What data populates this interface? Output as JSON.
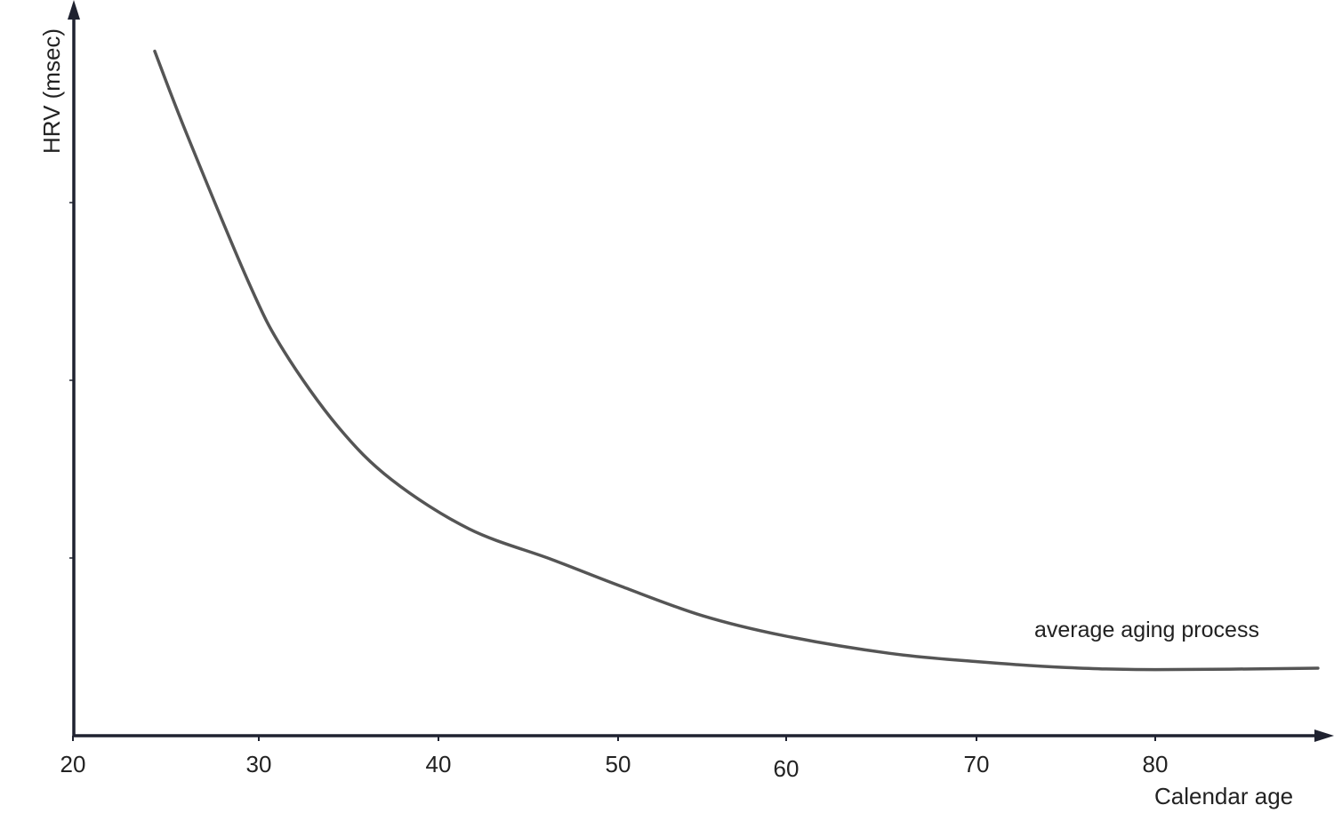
{
  "chart_data": {
    "type": "line",
    "title": "",
    "xlabel": "Calendar age",
    "ylabel": "HRV (msec)",
    "xlim": [
      20,
      89
    ],
    "ylim": [
      0,
      103
    ],
    "x_ticks": [
      20,
      30,
      40,
      50,
      60,
      70,
      80
    ],
    "x_tick_labels": [
      "20",
      "30",
      "40",
      "50",
      "60",
      "70",
      "80"
    ],
    "y_ticks": [
      25,
      50,
      75
    ],
    "y_tick_labels": [],
    "grid": false,
    "legend": "none",
    "annotations": [
      {
        "text": "average aging process",
        "x": 78,
        "y": 15
      }
    ],
    "colors": {
      "axis": "#1f2230",
      "line": "#555555"
    },
    "series": [
      {
        "x": [
          24.4,
          26.1,
          29.5,
          31.4,
          34.4,
          37.4,
          41.7,
          46.3,
          50.2,
          55.0,
          59.8,
          65.4,
          70.1,
          75.0,
          80.0,
          89.1
        ],
        "y": [
          96.3,
          84.8,
          63.5,
          54.1,
          43.5,
          36.0,
          29.1,
          24.8,
          21.0,
          16.9,
          14.1,
          11.6,
          10.4,
          9.6,
          9.3,
          9.5
        ]
      }
    ]
  }
}
